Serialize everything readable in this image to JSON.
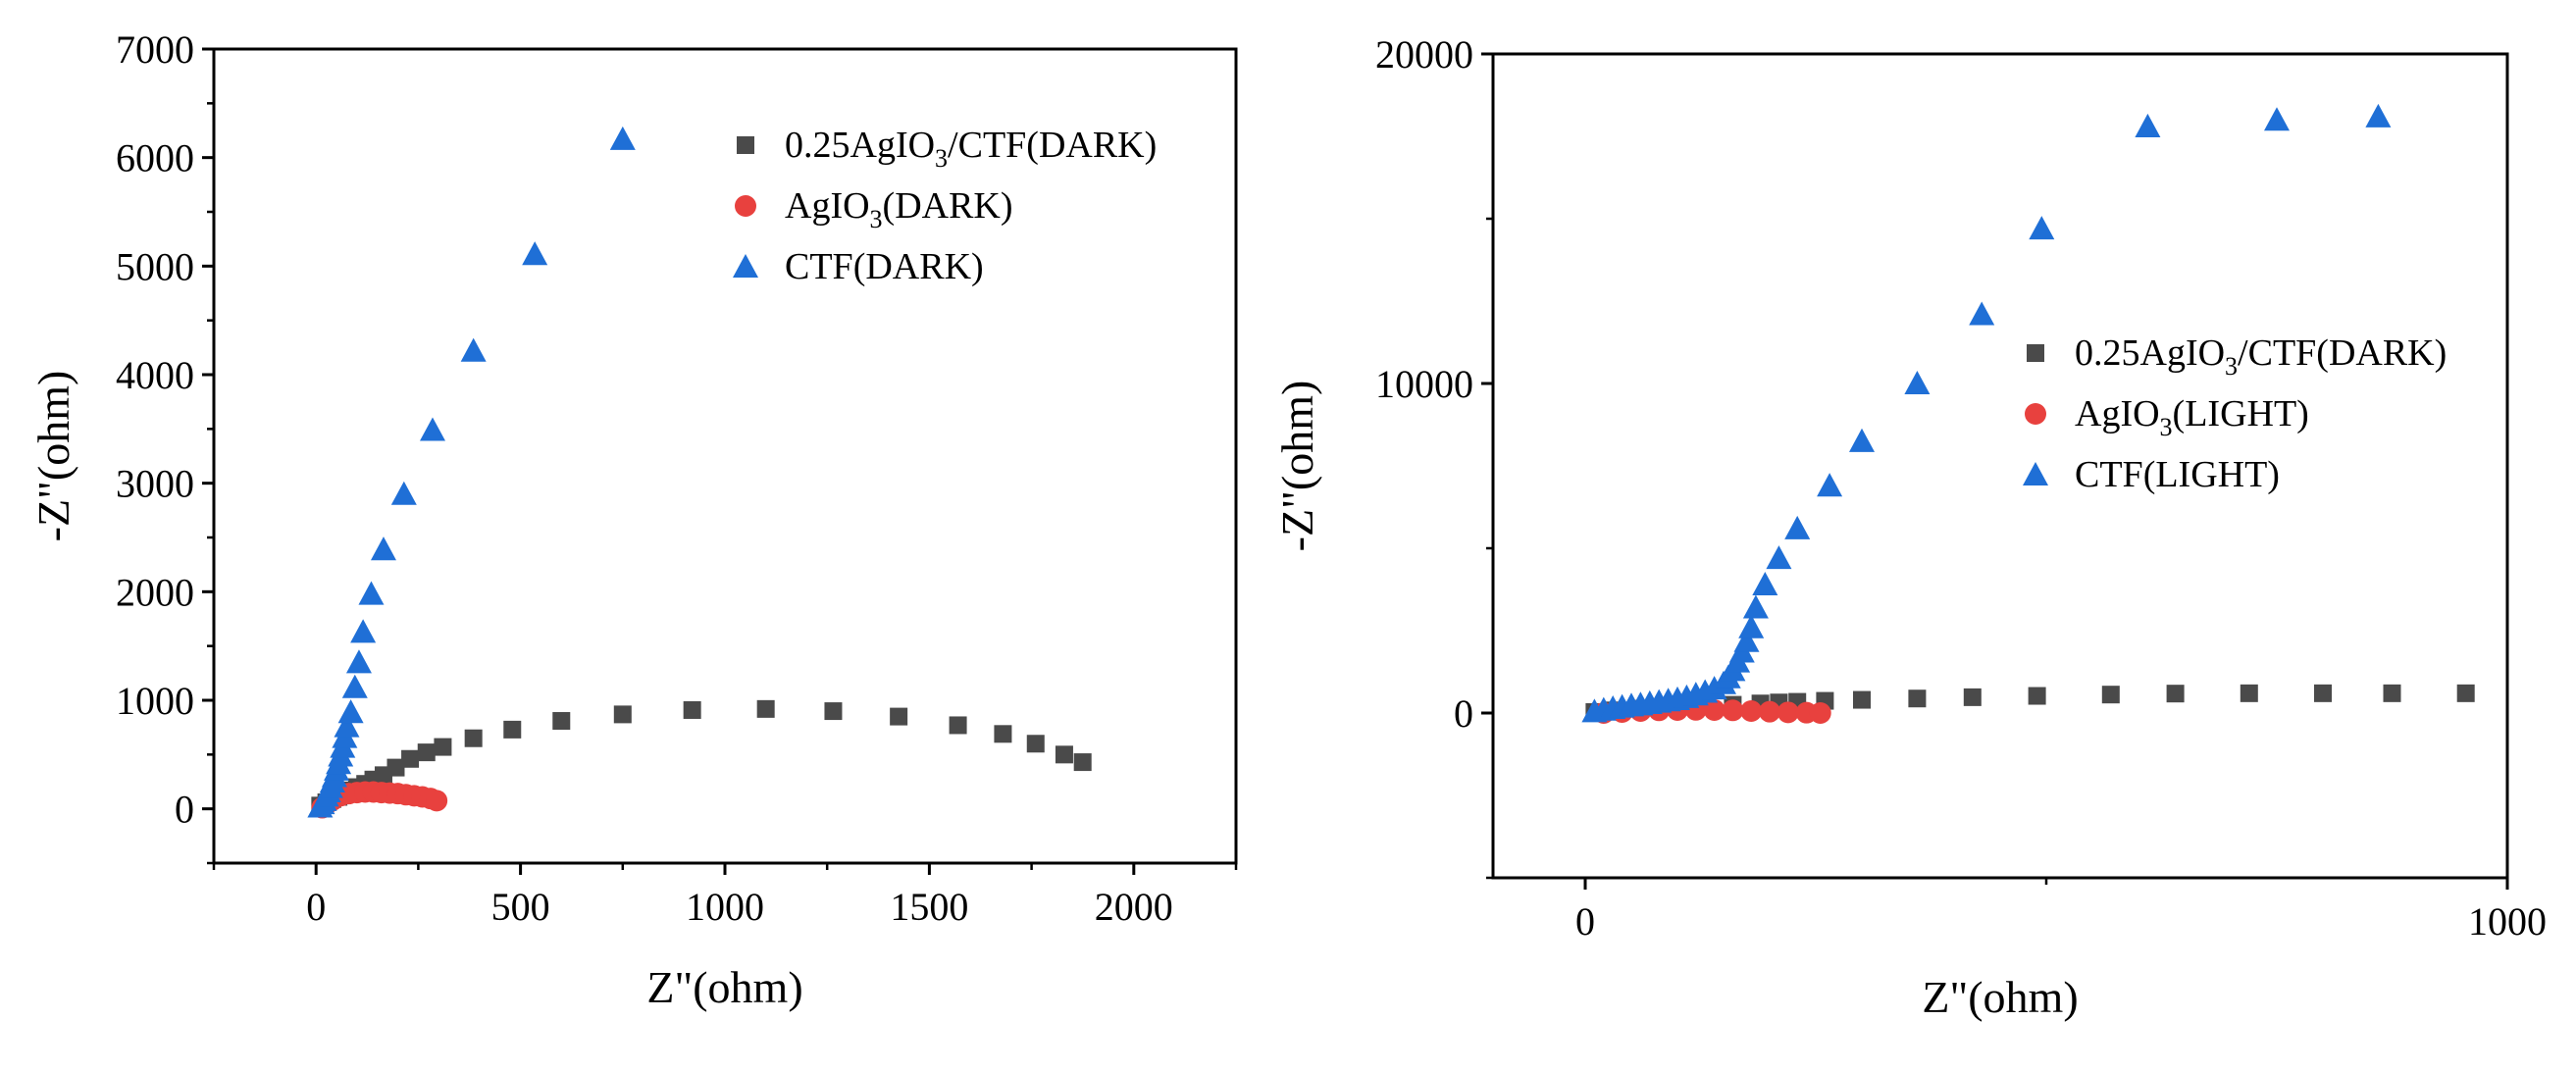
{
  "chart_data": [
    {
      "type": "scatter",
      "title": "",
      "xlabel": "Z\"(ohm)",
      "ylabel": "-Z\"(ohm)",
      "xlim": [
        -250,
        2250
      ],
      "ylim": [
        -500,
        7000
      ],
      "xticks": [
        0,
        500,
        1000,
        1500,
        2000
      ],
      "yticks": [
        0,
        1000,
        2000,
        3000,
        4000,
        5000,
        6000,
        7000
      ],
      "legend_position": "top-right",
      "series": [
        {
          "name": "0.25AgIO3/CTF(DARK)",
          "legend_parts": [
            "0.25AgIO",
            "3",
            "/CTF(DARK)"
          ],
          "marker": "square",
          "color": "#4a4a4a",
          "x": [
            10,
            25,
            40,
            55,
            70,
            85,
            100,
            120,
            140,
            165,
            195,
            230,
            270,
            310,
            385,
            480,
            600,
            750,
            920,
            1100,
            1265,
            1425,
            1570,
            1680,
            1760,
            1830,
            1875
          ],
          "y": [
            30,
            60,
            90,
            110,
            140,
            170,
            200,
            230,
            270,
            310,
            380,
            460,
            520,
            570,
            650,
            730,
            810,
            870,
            910,
            920,
            900,
            850,
            770,
            690,
            600,
            500,
            430
          ]
        },
        {
          "name": "AgIO3(DARK)",
          "legend_parts": [
            "AgIO",
            "3",
            "(DARK)"
          ],
          "marker": "circle",
          "color": "#e8413e",
          "x": [
            15,
            25,
            40,
            60,
            80,
            100,
            120,
            140,
            160,
            180,
            200,
            220,
            240,
            260,
            280,
            295
          ],
          "y": [
            10,
            40,
            80,
            120,
            140,
            150,
            155,
            155,
            150,
            145,
            140,
            130,
            120,
            110,
            95,
            75
          ]
        },
        {
          "name": "CTF(DARK)",
          "legend_parts": [
            "CTF(DARK)"
          ],
          "marker": "triangle",
          "color": "#1f6fd6",
          "x": [
            10,
            15,
            20,
            25,
            30,
            35,
            40,
            45,
            50,
            55,
            60,
            65,
            70,
            75,
            85,
            95,
            105,
            115,
            135,
            165,
            215,
            285,
            385,
            535,
            750
          ],
          "y": [
            20,
            50,
            80,
            120,
            160,
            200,
            250,
            300,
            360,
            420,
            490,
            570,
            660,
            760,
            890,
            1120,
            1350,
            1630,
            1980,
            2390,
            2900,
            3490,
            4220,
            5110,
            6170
          ]
        }
      ]
    },
    {
      "type": "scatter",
      "title": "",
      "xlabel": "Z\"(ohm)",
      "ylabel": "-Z\"(ohm)",
      "xlim": [
        -100,
        1000
      ],
      "ylim": [
        -5000,
        20000
      ],
      "xticks": [
        0,
        1000
      ],
      "yticks": [
        0,
        10000,
        20000
      ],
      "legend_position": "center-right",
      "series": [
        {
          "name": "0.25AgIO3/CTF(DARK)",
          "legend_parts": [
            "0.25AgIO",
            "3",
            "/CTF(DARK)"
          ],
          "marker": "square",
          "color": "#4a4a4a",
          "x": [
            10,
            30,
            60,
            100,
            130,
            160,
            190,
            210,
            230,
            260,
            300,
            360,
            420,
            490,
            570,
            640,
            720,
            800,
            875,
            955
          ],
          "y": [
            30,
            80,
            130,
            180,
            210,
            250,
            290,
            320,
            340,
            370,
            400,
            440,
            480,
            520,
            560,
            590,
            600,
            600,
            600,
            600
          ]
        },
        {
          "name": "AgIO3(LIGHT)",
          "legend_parts": [
            "AgIO",
            "3",
            "(LIGHT)"
          ],
          "marker": "circle",
          "color": "#e8413e",
          "x": [
            20,
            40,
            60,
            80,
            100,
            120,
            140,
            160,
            180,
            200,
            220,
            240,
            255
          ],
          "y": [
            0,
            30,
            60,
            80,
            90,
            95,
            90,
            80,
            60,
            40,
            20,
            10,
            0
          ]
        },
        {
          "name": "CTF(LIGHT)",
          "legend_parts": [
            "CTF(LIGHT)"
          ],
          "marker": "triangle",
          "color": "#1f6fd6",
          "x": [
            10,
            20,
            30,
            40,
            50,
            60,
            70,
            80,
            90,
            100,
            110,
            120,
            130,
            140,
            150,
            155,
            160,
            165,
            170,
            175,
            180,
            185,
            195,
            210,
            230,
            265,
            300,
            360,
            430,
            495,
            610,
            750,
            860
          ],
          "y": [
            50,
            100,
            150,
            190,
            230,
            260,
            300,
            340,
            380,
            420,
            480,
            560,
            640,
            740,
            900,
            1080,
            1300,
            1560,
            1860,
            2180,
            2600,
            3200,
            3900,
            4700,
            5600,
            6900,
            8250,
            10000,
            12100,
            14700,
            17800,
            18000,
            18100
          ]
        }
      ]
    }
  ]
}
